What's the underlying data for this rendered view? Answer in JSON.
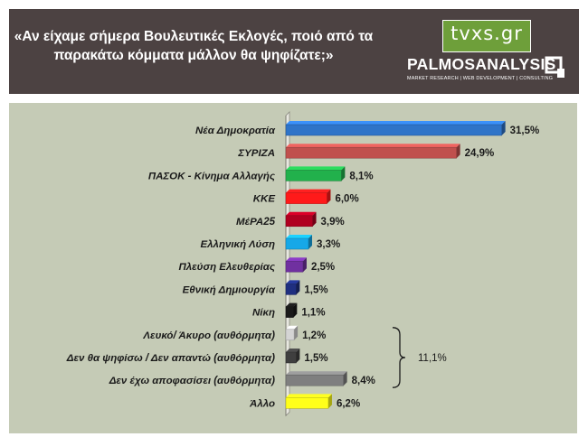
{
  "header": {
    "question": "«Αν είχαμε σήμερα Βουλευτικές Εκλογές, ποιό από τα παρακάτω κόμματα μάλλον θα ψηφίζατε;»",
    "logo_tvxs": "tvxs.gr",
    "logo_palmos": "PALMOSANALYSIS",
    "logo_palmos_sub": "MARKET RESEARCH | WEB DEVELOPMENT | CONSULTING"
  },
  "chart_data": {
    "type": "bar",
    "orientation": "horizontal",
    "categories": [
      "Νέα Δημοκρατία",
      "ΣΥΡΙΖΑ",
      "ΠΑΣΟΚ - Κίνημα Αλλαγής",
      "ΚΚΕ",
      "ΜέΡΑ25",
      "Ελληνική Λύση",
      "Πλεύση Ελευθερίας",
      "Εθνική Δημιουργία",
      "Νίκη",
      "Λευκό/ Άκυρο (αυθόρμητα)",
      "Δεν θα ψηφίσω / Δεν απαντώ (αυθόρμητα)",
      "Δεν έχω αποφασίσει (αυθόρμητα)",
      "Άλλο"
    ],
    "values": [
      31.5,
      24.9,
      8.1,
      6.0,
      3.9,
      3.3,
      2.5,
      1.5,
      1.1,
      1.2,
      1.5,
      8.4,
      6.2
    ],
    "value_labels": [
      "31,5%",
      "24,9%",
      "8,1%",
      "6,0%",
      "3,9%",
      "3,3%",
      "2,5%",
      "1,5%",
      "1,1%",
      "1,2%",
      "1,5%",
      "8,4%",
      "6,2%"
    ],
    "colors": [
      "#2f74c8",
      "#c0504d",
      "#22b14c",
      "#ff1a1a",
      "#b00020",
      "#16a8e8",
      "#7030a0",
      "#1f2f80",
      "#1a1a1a",
      "#d4d4d4",
      "#3f3f3f",
      "#7f7f7f",
      "#ffff1a"
    ],
    "xlim": [
      0,
      33
    ],
    "bracket": {
      "from_index": 9,
      "to_index": 11,
      "label": "11,1%"
    },
    "grid": false,
    "legend": "none"
  }
}
